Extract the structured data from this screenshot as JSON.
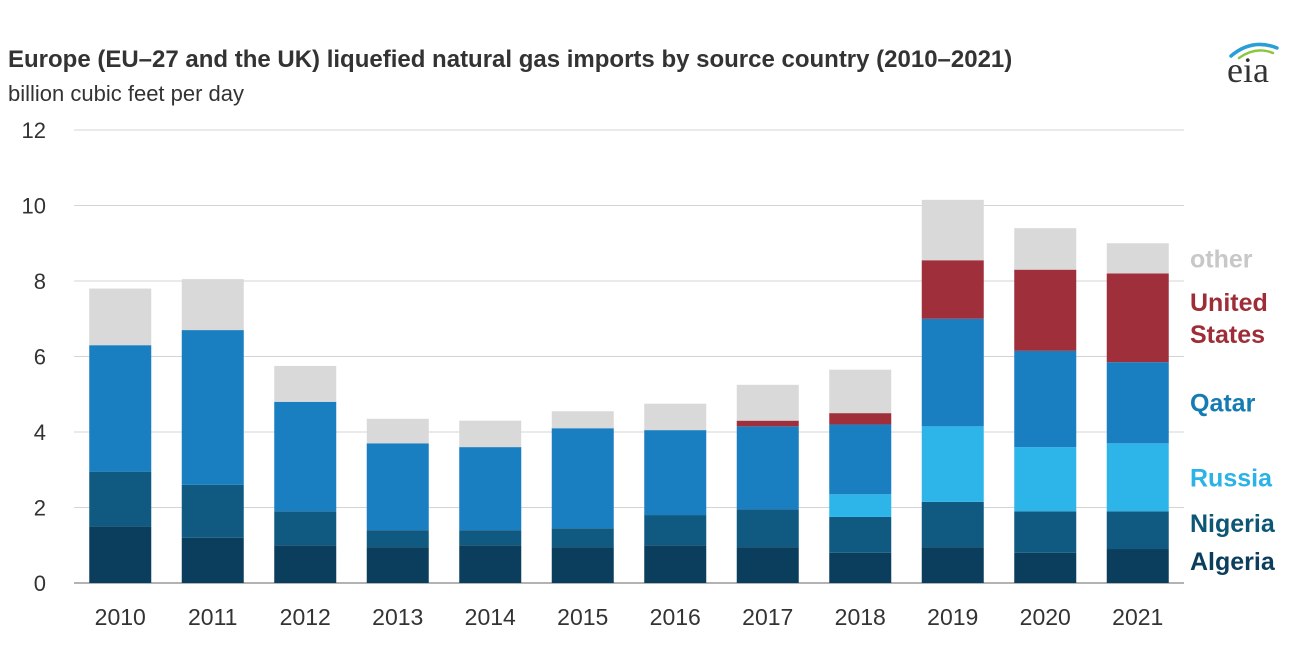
{
  "chart_data": {
    "type": "bar",
    "stacked": true,
    "title": "Europe (EU–27 and the UK) liquefied natural gas imports by source country (2010–2021)",
    "subtitle": "billion cubic feet per day",
    "logo_text": "eia",
    "categories": [
      "2010",
      "2011",
      "2012",
      "2013",
      "2014",
      "2015",
      "2016",
      "2017",
      "2018",
      "2019",
      "2020",
      "2021"
    ],
    "ylim": [
      0,
      12
    ],
    "yticks": [
      "0",
      "2",
      "4",
      "6",
      "8",
      "10",
      "12"
    ],
    "grid": true,
    "legend_position": "right, inline with stacks",
    "series": [
      {
        "name": "Algeria",
        "legend_label": [
          "Algeria"
        ],
        "color": "#0b3d5c",
        "label_color": "#0b3d5c",
        "values": [
          1.5,
          1.2,
          1.0,
          0.95,
          1.0,
          0.95,
          1.0,
          0.95,
          0.8,
          0.95,
          0.8,
          0.9
        ]
      },
      {
        "name": "Nigeria",
        "legend_label": [
          "Nigeria"
        ],
        "color": "#105a82",
        "label_color": "#0d5674",
        "values": [
          1.45,
          1.4,
          0.9,
          0.45,
          0.4,
          0.5,
          0.8,
          1.0,
          0.95,
          1.2,
          1.1,
          1.0
        ]
      },
      {
        "name": "Russia",
        "legend_label": [
          "Russia"
        ],
        "color": "#2db5ea",
        "label_color": "#2bb2e6",
        "values": [
          0,
          0,
          0,
          0,
          0,
          0,
          0,
          0,
          0.6,
          2.0,
          1.7,
          1.8
        ]
      },
      {
        "name": "Qatar",
        "legend_label": [
          "Qatar"
        ],
        "color": "#1a7fc0",
        "label_color": "#157cb3",
        "values": [
          3.35,
          4.1,
          2.9,
          2.3,
          2.2,
          2.65,
          2.25,
          2.2,
          1.85,
          2.85,
          2.55,
          2.15
        ]
      },
      {
        "name": "United States",
        "legend_label": [
          "United",
          "States"
        ],
        "color": "#a02f3c",
        "label_color": "#9f2d38",
        "values": [
          0,
          0,
          0,
          0,
          0,
          0,
          0,
          0.15,
          0.3,
          1.55,
          2.15,
          2.35
        ]
      },
      {
        "name": "other",
        "legend_label": [
          "other"
        ],
        "color": "#d9d9d9",
        "label_color": "#c8c8c8",
        "values": [
          1.5,
          1.35,
          0.95,
          0.65,
          0.7,
          0.45,
          0.7,
          0.95,
          1.15,
          1.6,
          1.1,
          0.8
        ]
      }
    ]
  }
}
